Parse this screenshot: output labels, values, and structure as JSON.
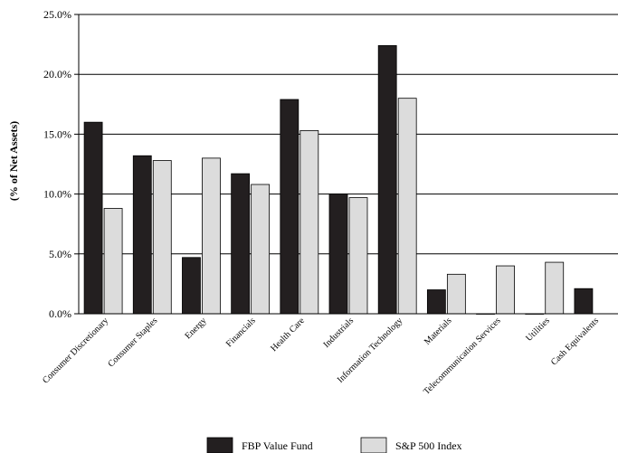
{
  "chart_data": {
    "type": "bar",
    "categories": [
      "Consumer Discretionary",
      "Consumer Staples",
      "Energy",
      "Financials",
      "Health Care",
      "Industrials",
      "Information Technology",
      "Materials",
      "Telecommunication Services",
      "Utilities",
      "Cash Equivalents"
    ],
    "series": [
      {
        "name": "FBP Value Fund",
        "color": "#231f20",
        "values": [
          16.0,
          13.2,
          4.7,
          11.7,
          17.9,
          10.0,
          22.4,
          2.0,
          0.0,
          0.0,
          2.1
        ]
      },
      {
        "name": "S&P 500 Index",
        "color": "#dcdcdc",
        "values": [
          8.8,
          12.8,
          13.0,
          10.8,
          15.3,
          9.7,
          18.0,
          3.3,
          4.0,
          4.3,
          null
        ]
      }
    ],
    "title": "",
    "xlabel": "",
    "ylabel": "(% of Net Assets)",
    "ylim": [
      0,
      25
    ],
    "yticks": [
      "0.0%",
      "5.0%",
      "10.0%",
      "15.0%",
      "20.0%",
      "25.0%"
    ],
    "grid": "horizontal",
    "legend_position": "bottom-center"
  }
}
